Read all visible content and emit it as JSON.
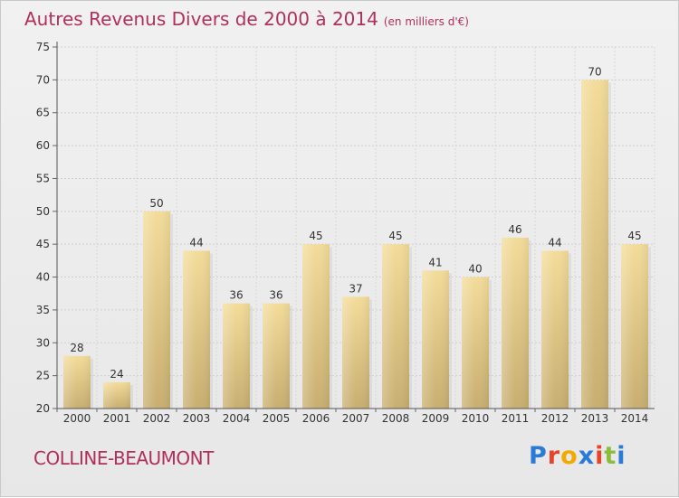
{
  "header": {
    "title": "Autres Revenus Divers de 2000 à 2014",
    "unit": "(en milliers d'€)"
  },
  "footer": {
    "commune": "COLLINE-BEAUMONT",
    "logo_text": "Proxiti"
  },
  "colors": {
    "title": "#b0305a",
    "bar_light": "#f3dc9a",
    "bar_dark": "#c8ae70",
    "logo": [
      "#2a7bd6",
      "#e8442c",
      "#f2a900",
      "#2a7bd6",
      "#e8442c",
      "#8bbd3c",
      "#2a7bd6"
    ]
  },
  "chart_data": {
    "type": "bar",
    "title": "Autres Revenus Divers de 2000 à 2014",
    "subtitle": "(en milliers d'€)",
    "xlabel": "",
    "ylabel": "",
    "categories": [
      "2000",
      "2001",
      "2002",
      "2003",
      "2004",
      "2005",
      "2006",
      "2007",
      "2008",
      "2009",
      "2010",
      "2011",
      "2012",
      "2013",
      "2014"
    ],
    "values": [
      28,
      24,
      50,
      44,
      36,
      36,
      45,
      37,
      45,
      41,
      40,
      46,
      44,
      70,
      45
    ],
    "ylim": [
      20,
      75
    ],
    "yticks": [
      20,
      25,
      30,
      35,
      40,
      45,
      50,
      55,
      60,
      65,
      70,
      75
    ],
    "grid": true,
    "legend": "none"
  }
}
